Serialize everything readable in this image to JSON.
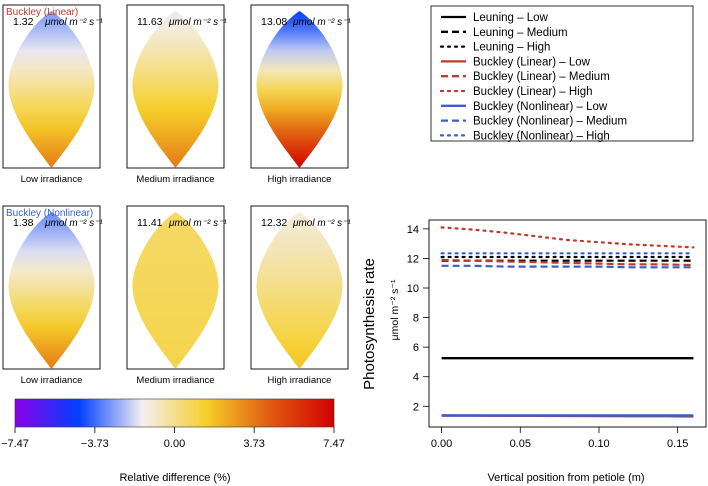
{
  "chart_data": [
    {
      "type": "heatmap",
      "title": "Leaf relative difference maps",
      "rows": [
        {
          "model": "Buckley (Linear)",
          "model_color": "#c0392b",
          "panels": [
            {
              "value": "1.32",
              "unit": "μmol m⁻² s⁻¹",
              "label": "Low irradiance",
              "top_diff": -3.0,
              "bottom_diff": 3.7
            },
            {
              "value": "11.63",
              "unit": "μmol m⁻² s⁻¹",
              "label": "Medium irradiance",
              "top_diff": -1.6,
              "bottom_diff": 3.7
            },
            {
              "value": "13.08",
              "unit": "μmol m⁻² s⁻¹",
              "label": "High irradiance",
              "top_diff": -4.6,
              "bottom_diff": 7.4
            }
          ]
        },
        {
          "model": "Buckley (Nonlinear)",
          "model_color": "#3a5fcd",
          "panels": [
            {
              "value": "1.38",
              "unit": "μmol m⁻² s⁻¹",
              "label": "Low irradiance",
              "top_diff": -3.2,
              "bottom_diff": 3.7
            },
            {
              "value": "11.41",
              "unit": "μmol m⁻² s⁻¹",
              "label": "Medium irradiance",
              "top_diff": 0.6,
              "bottom_diff": 1.0
            },
            {
              "value": "12.32",
              "unit": "μmol m⁻² s⁻¹",
              "label": "High irradiance",
              "top_diff": -1.2,
              "bottom_diff": 1.8
            }
          ]
        }
      ],
      "colorbar": {
        "title": "Relative difference (%)",
        "min": -7.47,
        "max": 7.47,
        "ticks": [
          "−7.47",
          "−3.73",
          "0.00",
          "3.73",
          "7.47"
        ],
        "tick_values": [
          -7.47,
          -3.73,
          0.0,
          3.73,
          7.47
        ],
        "stops": [
          "#8c00e6",
          "#0040ff",
          "#f4eff0",
          "#f5cf2a",
          "#e05a10",
          "#d10000"
        ]
      }
    },
    {
      "type": "line",
      "title": "",
      "xlabel": "Vertical position from petiole (m)",
      "ylabel": "Photosynthesis rate",
      "ylabel_unit": "μmol m⁻² s⁻¹",
      "xlim": [
        -0.008,
        0.168
      ],
      "ylim": [
        0.6,
        14.6
      ],
      "xticks": [
        0.0,
        0.05,
        0.1,
        0.15
      ],
      "xtick_labels": [
        "0.00",
        "0.05",
        "0.10",
        "0.15"
      ],
      "yticks": [
        2,
        4,
        6,
        8,
        10,
        12,
        14
      ],
      "ytick_labels": [
        "2",
        "4",
        "6",
        "8",
        "10",
        "12",
        "14"
      ],
      "x": [
        0.0,
        0.02,
        0.04,
        0.06,
        0.08,
        0.1,
        0.12,
        0.14,
        0.16
      ],
      "series": [
        {
          "name": "Leuning – Low",
          "color": "#000000",
          "dash": "solid",
          "values": [
            5.25,
            5.25,
            5.25,
            5.25,
            5.25,
            5.25,
            5.25,
            5.25,
            5.25
          ]
        },
        {
          "name": "Leuning – Medium",
          "color": "#000000",
          "dash": "dashed",
          "values": [
            11.85,
            11.85,
            11.85,
            11.85,
            11.85,
            11.85,
            11.85,
            11.85,
            11.85
          ]
        },
        {
          "name": "Leuning – High",
          "color": "#000000",
          "dash": "dotted",
          "values": [
            12.1,
            12.1,
            12.1,
            12.1,
            12.1,
            12.1,
            12.1,
            12.1,
            12.1
          ]
        },
        {
          "name": "Buckley (Linear) – Low",
          "color": "#c0392b",
          "dash": "solid",
          "values": [
            1.38,
            1.37,
            1.36,
            1.36,
            1.35,
            1.34,
            1.33,
            1.33,
            1.32
          ]
        },
        {
          "name": "Buckley (Linear) – Medium",
          "color": "#c0392b",
          "dash": "dashed",
          "values": [
            11.9,
            11.85,
            11.8,
            11.75,
            11.7,
            11.65,
            11.6,
            11.6,
            11.55
          ]
        },
        {
          "name": "Buckley (Linear) – High",
          "color": "#c0392b",
          "dash": "dotted",
          "values": [
            14.1,
            13.95,
            13.75,
            13.5,
            13.25,
            13.1,
            12.95,
            12.85,
            12.75
          ]
        },
        {
          "name": "Buckley (Nonlinear) – Low",
          "color": "#3a5fcd",
          "dash": "solid",
          "values": [
            1.38,
            1.38,
            1.38,
            1.38,
            1.38,
            1.38,
            1.38,
            1.38,
            1.38
          ]
        },
        {
          "name": "Buckley (Nonlinear) – Medium",
          "color": "#3a5fcd",
          "dash": "dashed",
          "values": [
            11.5,
            11.5,
            11.45,
            11.45,
            11.45,
            11.45,
            11.4,
            11.4,
            11.4
          ]
        },
        {
          "name": "Buckley (Nonlinear) – High",
          "color": "#3a5fcd",
          "dash": "dotted",
          "values": [
            12.35,
            12.35,
            12.35,
            12.35,
            12.35,
            12.35,
            12.35,
            12.35,
            12.35
          ]
        }
      ]
    }
  ]
}
